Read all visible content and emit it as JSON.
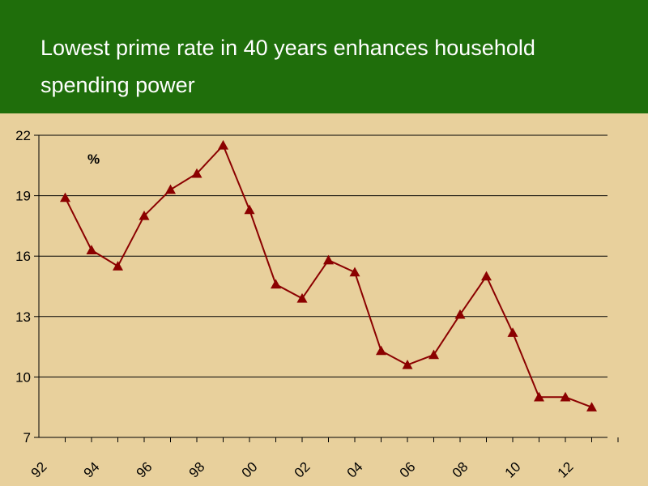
{
  "colors": {
    "header_bg": "#1f6e0b",
    "plot_bg": "#e8d09c",
    "series": "#8b0000",
    "grid": "#000000"
  },
  "chart_data": {
    "type": "line",
    "title": "Lowest prime rate in 40 years enhances household spending power",
    "ylabel": "%",
    "xlabel": "",
    "ylim": [
      7,
      22
    ],
    "yticks": [
      7,
      10,
      13,
      16,
      19,
      22
    ],
    "xtick_labels": [
      "92",
      "94",
      "96",
      "98",
      "00",
      "02",
      "04",
      "06",
      "08",
      "10",
      "12"
    ],
    "grid": "horizontal",
    "marker": "triangle",
    "series": [
      {
        "x": [
          1993,
          1994,
          1995,
          1996,
          1997,
          1998,
          1999,
          2000,
          2001,
          2002,
          2003,
          2004,
          2005,
          2006,
          2007,
          2008,
          2009,
          2010,
          2011,
          2012,
          2013
        ],
        "values": [
          18.9,
          16.3,
          15.5,
          18.0,
          19.3,
          20.1,
          21.5,
          18.3,
          14.6,
          13.9,
          15.8,
          15.2,
          11.3,
          10.6,
          11.1,
          13.1,
          15.0,
          12.2,
          9.0,
          9.0,
          8.5
        ]
      }
    ]
  }
}
